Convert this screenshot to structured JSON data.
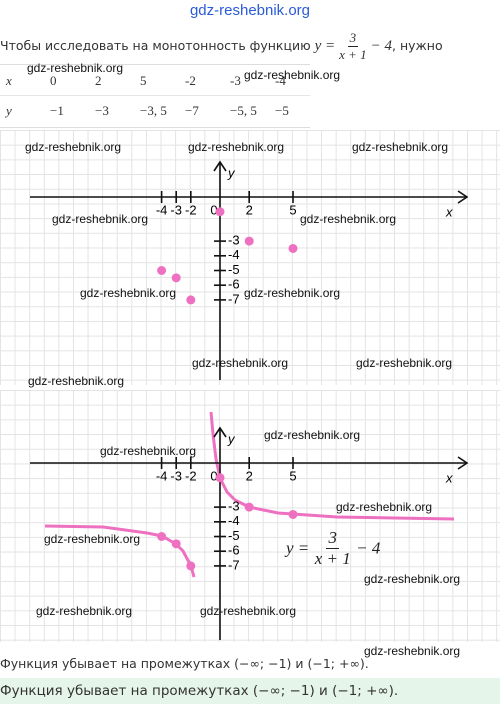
{
  "watermark": "gdz-reshebnik.org",
  "intro": {
    "before": "Чтобы исследовать на монотонность функцию",
    "lhs": "y =",
    "numerator": "3",
    "denominator": "x + 1",
    "tail": "− 4",
    "after": ", нужно"
  },
  "table": {
    "x_header": "x",
    "y_header": "y",
    "x": [
      0,
      2,
      5,
      -2,
      -3,
      -4
    ],
    "y": [
      -1,
      -3,
      -3.5,
      -7,
      -5.5,
      -5
    ],
    "y_labels": [
      "−1",
      "−3",
      "−3, 5",
      "−7",
      "−5, 5",
      "−5"
    ]
  },
  "graph": {
    "x_label": "x",
    "y_label": "y",
    "xticks": [
      -4,
      -3,
      -2,
      0,
      2,
      5
    ],
    "yticks": [
      -3,
      -4,
      -5,
      -6,
      -7
    ]
  },
  "formula": {
    "lhs": "y =",
    "numerator": "3",
    "denominator": "x + 1",
    "tail": "− 4"
  },
  "conclusion": "Функция убывает на промежутках (−∞; −1) и (−1; +∞).",
  "answer": "Функция убывает на промежутках (−∞; −1) и (−1; +∞)."
}
